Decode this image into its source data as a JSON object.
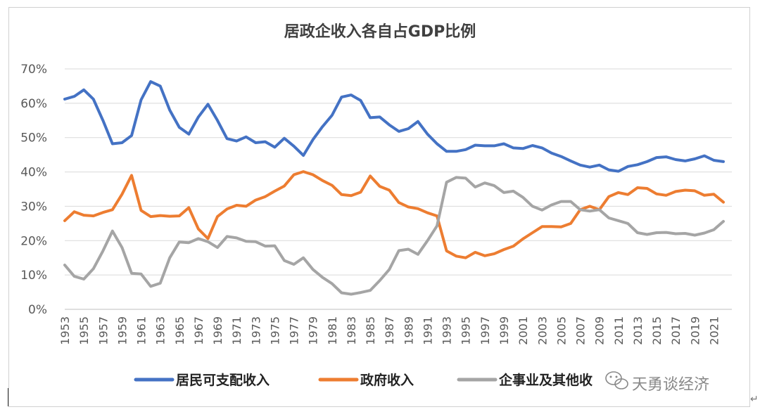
{
  "chart_data": {
    "type": "line",
    "title": "居政企收入各自占GDP比例",
    "ylim": [
      0,
      70
    ],
    "yticks": [
      "0%",
      "10%",
      "20%",
      "30%",
      "40%",
      "50%",
      "60%",
      "70%"
    ],
    "x": [
      1953,
      1954,
      1955,
      1956,
      1957,
      1958,
      1959,
      1960,
      1961,
      1962,
      1963,
      1964,
      1965,
      1966,
      1967,
      1968,
      1969,
      1970,
      1971,
      1972,
      1973,
      1974,
      1975,
      1976,
      1977,
      1978,
      1979,
      1980,
      1981,
      1982,
      1983,
      1984,
      1985,
      1986,
      1987,
      1988,
      1989,
      1990,
      1991,
      1992,
      1993,
      1994,
      1995,
      1996,
      1997,
      1998,
      1999,
      2000,
      2001,
      2002,
      2003,
      2004,
      2005,
      2006,
      2007,
      2008,
      2009,
      2010,
      2011,
      2012,
      2013,
      2014,
      2015,
      2016,
      2017,
      2018,
      2019,
      2020,
      2021,
      2022
    ],
    "xtick_labels": [
      "1953",
      "1955",
      "1957",
      "1959",
      "1961",
      "1963",
      "1965",
      "1967",
      "1969",
      "1971",
      "1973",
      "1975",
      "1977",
      "1979",
      "1981",
      "1983",
      "1985",
      "1987",
      "1989",
      "1991",
      "1993",
      "1995",
      "1997",
      "1999",
      "2001",
      "2003",
      "2005",
      "2007",
      "2009",
      "2011",
      "2013",
      "2015",
      "2017",
      "2019",
      "2021"
    ],
    "series": [
      {
        "name": "居民可支配收入",
        "color": "#4472C4",
        "values": [
          61.2,
          62,
          63.9,
          61.2,
          55,
          48.2,
          48.5,
          50.6,
          61,
          66.3,
          65,
          58,
          53,
          51,
          56,
          59.7,
          55,
          49.7,
          49,
          50.2,
          48.5,
          48.8,
          47.2,
          49.8,
          47.5,
          44.8,
          49.4,
          53.2,
          56.5,
          61.8,
          62.4,
          60.8,
          55.8,
          56,
          53.7,
          51.8,
          52.6,
          54.7,
          51,
          48.2,
          46,
          46,
          46.5,
          47.8,
          47.6,
          47.6,
          48.2,
          47,
          46.8,
          47.7,
          47,
          45.5,
          44.5,
          43.2,
          42,
          41.4,
          42,
          40.6,
          40.2,
          41.6,
          42.1,
          43,
          44.2,
          44.4,
          43.6,
          43.2,
          43.8,
          44.7,
          43.4,
          43
        ]
      },
      {
        "name": "政府收入",
        "color": "#ED7D31",
        "values": [
          25.8,
          28.4,
          27.4,
          27.2,
          28.2,
          29,
          33.5,
          39,
          28.8,
          27,
          27.3,
          27.1,
          27.2,
          29.6,
          23.4,
          20.6,
          27,
          29.2,
          30.3,
          30,
          31.8,
          32.8,
          34.4,
          35.9,
          39.2,
          40.1,
          39.2,
          37.5,
          36.1,
          33.4,
          33.1,
          34.1,
          38.8,
          35.8,
          34.7,
          31.1,
          29.8,
          29.3,
          28.1,
          27.2,
          17,
          15.5,
          15,
          16.6,
          15.6,
          16.2,
          17.4,
          18.4,
          20.5,
          22.3,
          24.1,
          24.1,
          24,
          25,
          29,
          30,
          29,
          32.8,
          34,
          33.4,
          35.4,
          35.2,
          33.6,
          33.2,
          34.3,
          34.7,
          34.5,
          33.2,
          33.5,
          31.2
        ]
      },
      {
        "name": "企事业及其他收",
        "color": "#A5A5A5",
        "values": [
          12.9,
          9.6,
          8.8,
          11.8,
          17,
          22.8,
          18,
          10.5,
          10.3,
          6.7,
          7.6,
          15,
          19.6,
          19.4,
          20.6,
          19.7,
          18,
          21.2,
          20.8,
          19.8,
          19.7,
          18.4,
          18.5,
          14.2,
          13.1,
          15,
          11.6,
          9.3,
          7.5,
          4.8,
          4.4,
          4.9,
          5.5,
          8.4,
          11.6,
          17.1,
          17.5,
          16,
          20,
          24.3,
          37,
          38.4,
          38.2,
          35.6,
          36.8,
          36,
          34,
          34.4,
          32.6,
          30,
          28.9,
          30.4,
          31.4,
          31.4,
          29,
          28.6,
          29,
          26.6,
          25.8,
          25,
          22.3,
          21.8,
          22.3,
          22.4,
          22,
          22.1,
          21.6,
          22.2,
          23.2,
          25.6
        ]
      }
    ]
  },
  "watermark": {
    "icon": "wechat-icon",
    "text": "天勇谈经济"
  },
  "decor": {
    "return_glyph": "↵"
  }
}
